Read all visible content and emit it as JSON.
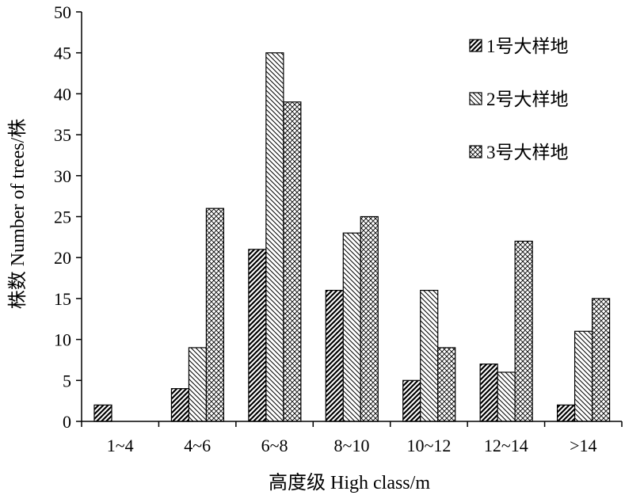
{
  "chart_data": {
    "type": "bar",
    "title": "",
    "xlabel": "高度级 High class/m",
    "ylabel": "株数 Number of trees/株",
    "categories": [
      "1~4",
      "4~6",
      "6~8",
      "8~10",
      "10~12",
      "12~14",
      ">14"
    ],
    "ylim": [
      0,
      50
    ],
    "yticks": [
      0,
      5,
      10,
      15,
      20,
      25,
      30,
      35,
      40,
      45,
      50
    ],
    "legend_position": "top-right",
    "grid": false,
    "series": [
      {
        "name": "1号大样地",
        "pattern": "diagonal-up",
        "values": [
          2,
          4,
          21,
          16,
          5,
          7,
          2
        ]
      },
      {
        "name": "2号大样地",
        "pattern": "diagonal-down",
        "values": [
          0,
          9,
          45,
          23,
          16,
          6,
          11
        ]
      },
      {
        "name": "3号大样地",
        "pattern": "crosshatch",
        "values": [
          0,
          26,
          39,
          25,
          9,
          22,
          15
        ]
      }
    ]
  }
}
